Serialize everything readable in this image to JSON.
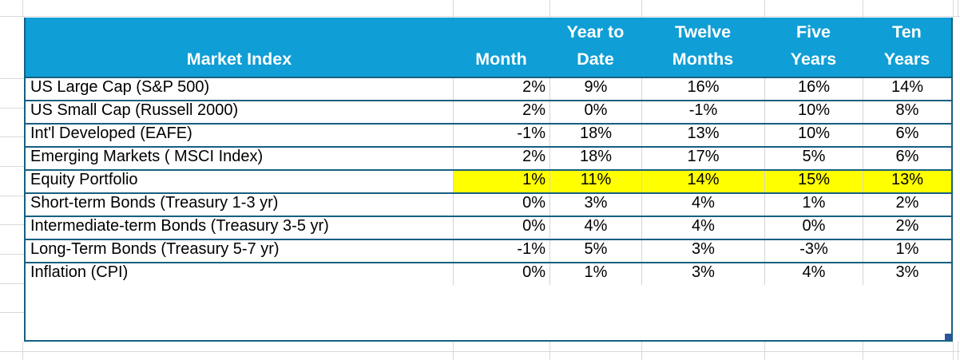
{
  "table": {
    "header": {
      "market_index": "Market Index",
      "columns": [
        "Month",
        "Year to\nDate",
        "Twelve\nMonths",
        "Five\nYears",
        "Ten\nYears"
      ]
    },
    "rows": [
      {
        "label": "US Large Cap (S&P 500)",
        "values": [
          "2%",
          "9%",
          "16%",
          "16%",
          "14%"
        ],
        "highlighted": false
      },
      {
        "label": "US Small Cap (Russell 2000)",
        "values": [
          "2%",
          "0%",
          "-1%",
          "10%",
          "8%"
        ],
        "highlighted": false
      },
      {
        "label": "Int'l Developed (EAFE)",
        "values": [
          "-1%",
          "18%",
          "13%",
          "10%",
          "6%"
        ],
        "highlighted": false
      },
      {
        "label": "Emerging Markets ( MSCI Index)",
        "values": [
          "2%",
          "18%",
          "17%",
          "5%",
          "6%"
        ],
        "highlighted": false
      },
      {
        "label": "Equity Portfolio",
        "values": [
          "1%",
          "11%",
          "14%",
          "15%",
          "13%"
        ],
        "highlighted": true
      },
      {
        "label": "Short-term Bonds (Treasury 1-3 yr)",
        "values": [
          "0%",
          "3%",
          "4%",
          "1%",
          "2%"
        ],
        "highlighted": false
      },
      {
        "label": "Intermediate-term Bonds (Treasury 3-5 yr)",
        "values": [
          "0%",
          "4%",
          "4%",
          "0%",
          "2%"
        ],
        "highlighted": false
      },
      {
        "label": "Long-Term Bonds (Treasury 5-7 yr)",
        "values": [
          "-1%",
          "5%",
          "3%",
          "-3%",
          "1%"
        ],
        "highlighted": false
      },
      {
        "label": "Inflation (CPI)",
        "values": [
          "0%",
          "1%",
          "3%",
          "4%",
          "3%"
        ],
        "highlighted": false
      }
    ]
  },
  "colors": {
    "header_bg": "#0F9ED5",
    "header_text": "#FFFFFF",
    "table_border": "#156082",
    "sheet_gridline": "#D9D9D9",
    "highlight": "#FFFF00",
    "resize_handle": "#2B579A",
    "body_text": "#000000"
  }
}
